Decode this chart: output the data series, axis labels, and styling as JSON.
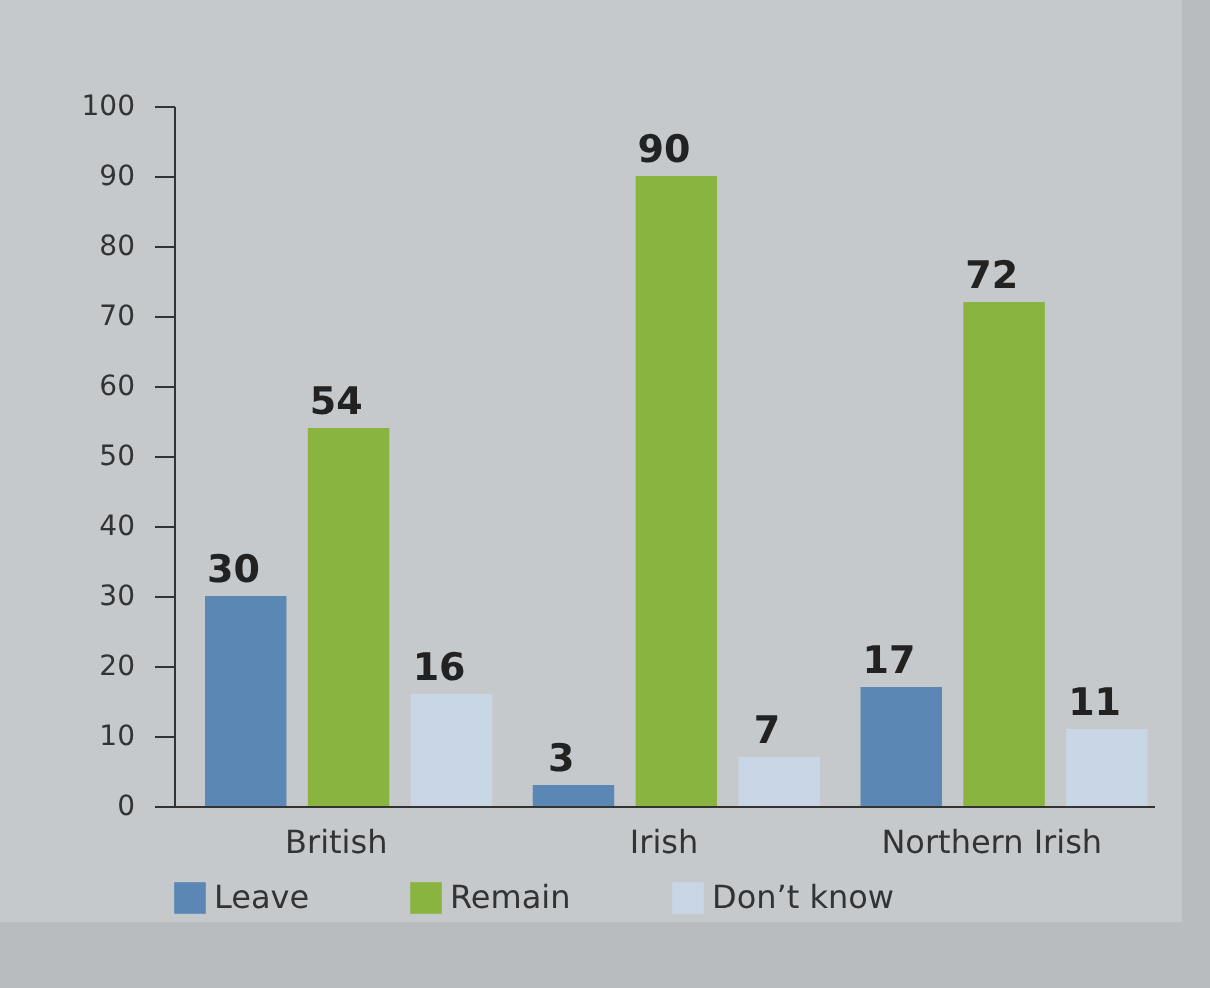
{
  "chart_data": {
    "type": "bar",
    "categories": [
      "British",
      "Irish",
      "Northern Irish"
    ],
    "series": [
      {
        "name": "Leave",
        "color": "#5b87b5",
        "values": [
          30,
          3,
          17
        ]
      },
      {
        "name": "Remain",
        "color": "#8ab440",
        "values": [
          54,
          90,
          72
        ]
      },
      {
        "name": "Don’t know",
        "color": "#c9d6e6",
        "values": [
          16,
          7,
          11
        ]
      }
    ],
    "ylim": [
      0,
      100
    ],
    "yticks": [
      0,
      10,
      20,
      30,
      40,
      50,
      60,
      70,
      80,
      90,
      100
    ],
    "grid": false,
    "legend": "bottom",
    "data_labels": true
  }
}
